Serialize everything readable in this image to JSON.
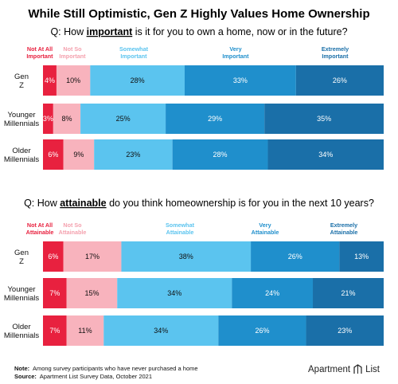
{
  "title": "While Still Optimistic, Gen Z Highly Values Home Ownership",
  "footer": {
    "note_label": "Note:",
    "note_text": "Among survey participants who have never purchased a home",
    "source_label": "Source:",
    "source_text": "Apartment List Survey Data, October 2021",
    "brand_part1": "Apartment",
    "brand_part2": "List"
  },
  "colors": [
    "#e8213f",
    "#f8b3bd",
    "#5bc4ef",
    "#1f8fcc",
    "#1a6fa8"
  ],
  "chart_data": [
    {
      "type": "bar",
      "stacked": "horizontal-100",
      "question_prefix": "Q: How ",
      "question_keyword": "important",
      "question_suffix": " is it for you to own a home, now or in the future?",
      "categories": [
        "Gen Z",
        "Younger Millennials",
        "Older Millennials"
      ],
      "series": [
        {
          "name": "Not At All Important",
          "values": [
            4,
            3,
            6
          ]
        },
        {
          "name": "Not So Important",
          "values": [
            10,
            8,
            9
          ]
        },
        {
          "name": "Somewhat Important",
          "values": [
            28,
            25,
            23
          ]
        },
        {
          "name": "Very Important",
          "values": [
            33,
            29,
            28
          ]
        },
        {
          "name": "Extremely Important",
          "values": [
            26,
            35,
            34
          ]
        }
      ],
      "unit": "%"
    },
    {
      "type": "bar",
      "stacked": "horizontal-100",
      "question_prefix": "Q: How ",
      "question_keyword": "attainable",
      "question_suffix": " do you think homeownership is for you in the next 10 years?",
      "categories": [
        "Gen Z",
        "Younger Millennials",
        "Older Millennials"
      ],
      "series": [
        {
          "name": "Not At All Attainable",
          "values": [
            6,
            7,
            7
          ]
        },
        {
          "name": "Not So Attainable",
          "values": [
            17,
            15,
            11
          ]
        },
        {
          "name": "Somewhat Attainable",
          "values": [
            38,
            34,
            34
          ]
        },
        {
          "name": "Very Attainable",
          "values": [
            26,
            24,
            26
          ]
        },
        {
          "name": "Extremely Attainable",
          "values": [
            13,
            21,
            23
          ]
        }
      ],
      "unit": "%"
    }
  ]
}
